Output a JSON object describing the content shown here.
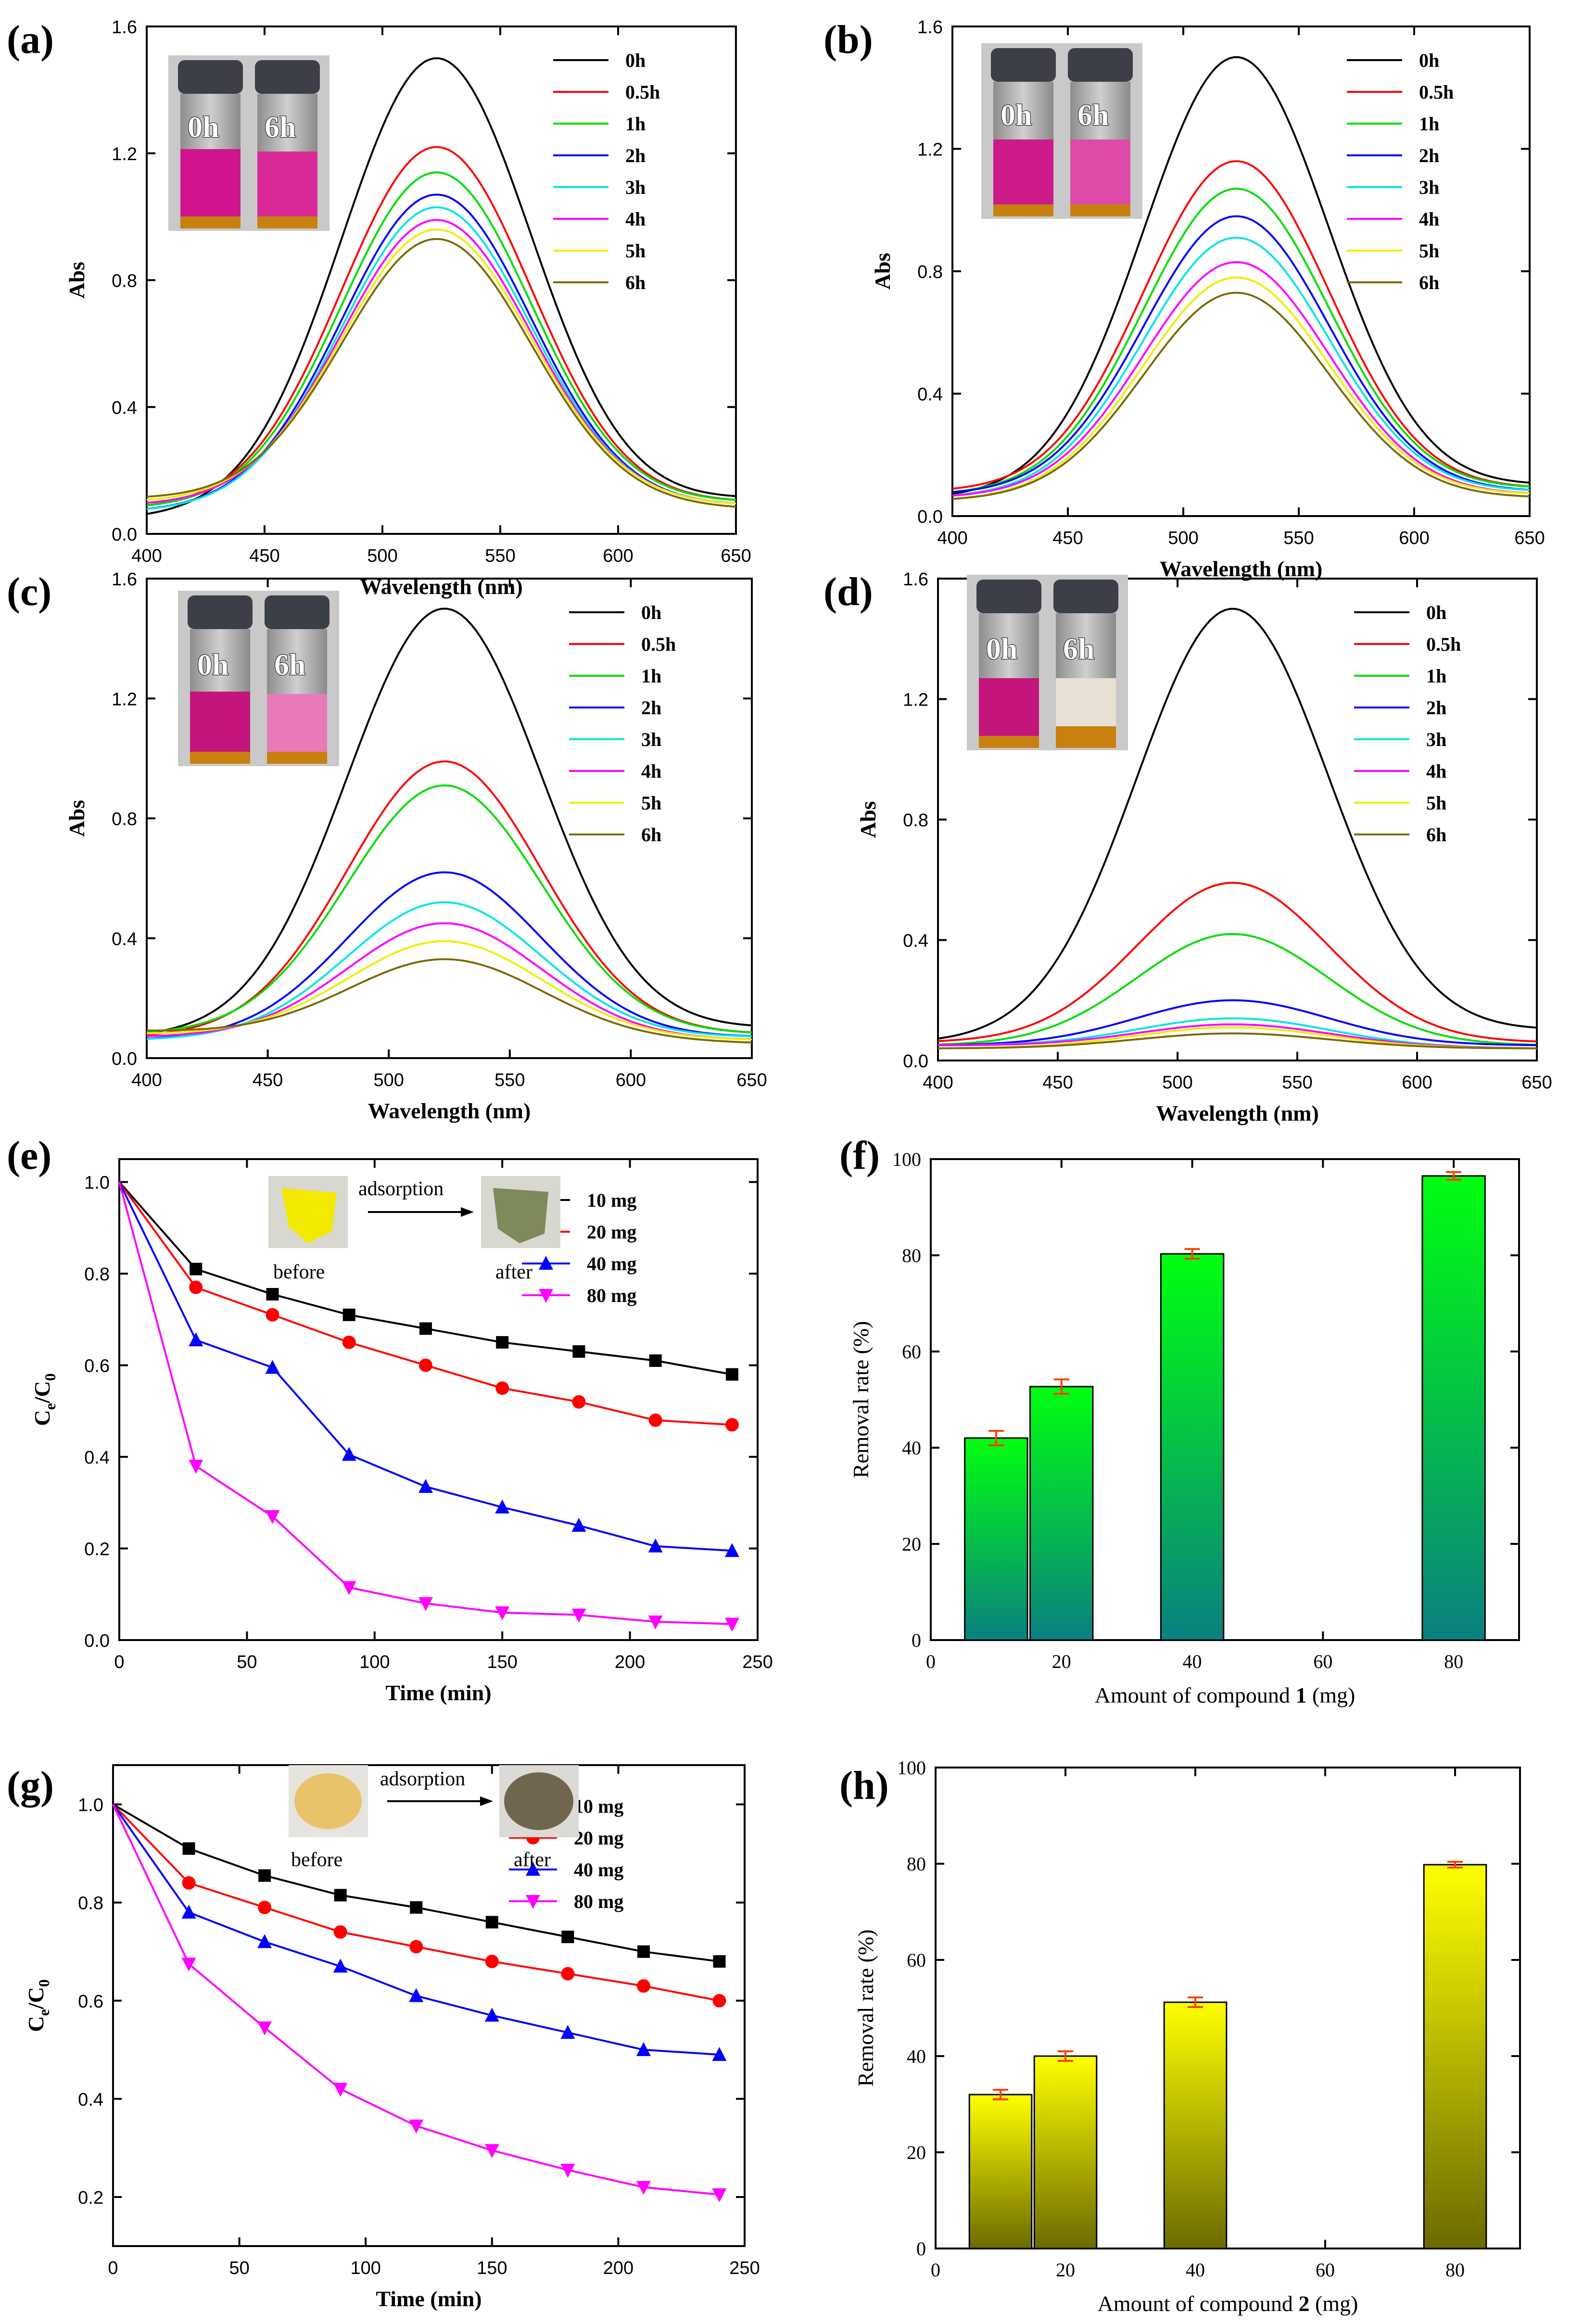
{
  "figure": {
    "panel_labels": [
      "(a)",
      "(b)",
      "(c)",
      "(d)",
      "(e)",
      "(f)",
      "(g)",
      "(h)"
    ],
    "vial_labels": [
      "0h",
      "6h"
    ],
    "inset_arrow_text": "adsorption",
    "inset_before": "before",
    "inset_after": "after",
    "series_colors": {
      "0h": "#000000",
      "0.5h": "#ff0000",
      "1h": "#00dd00",
      "2h": "#0000ff",
      "3h": "#00e5e5",
      "4h": "#ff00ff",
      "5h": "#eeee00",
      "6h": "#7a6a00"
    },
    "bar_colors": {
      "f_top": "#00ff10",
      "f_bottom": "#0a8080",
      "h_top": "#ffff00",
      "h_bottom": "#6b6b00",
      "error": "#ff4000"
    }
  },
  "chart_data": [
    {
      "id": "a",
      "type": "line",
      "xlabel": "Wavelength (nm)",
      "ylabel": "Abs",
      "xlim": [
        400,
        650
      ],
      "ylim": [
        0,
        1.6
      ],
      "xticks": [
        "400",
        "450",
        "500",
        "550",
        "600",
        "650"
      ],
      "yticks": [
        "0.0",
        "0.4",
        "0.8",
        "1.2",
        "1.6"
      ],
      "legend": "top-right",
      "peak_nm": 523,
      "series": [
        {
          "name": "0h",
          "peak": 1.5,
          "base": 0.05,
          "baseR": 0.11
        },
        {
          "name": "0.5h",
          "peak": 1.22,
          "base": 0.08,
          "baseR": 0.1
        },
        {
          "name": "1h",
          "peak": 1.14,
          "base": 0.08,
          "baseR": 0.1
        },
        {
          "name": "2h",
          "peak": 1.07,
          "base": 0.07,
          "baseR": 0.09
        },
        {
          "name": "3h",
          "peak": 1.03,
          "base": 0.07,
          "baseR": 0.09
        },
        {
          "name": "4h",
          "peak": 0.99,
          "base": 0.09,
          "baseR": 0.09
        },
        {
          "name": "5h",
          "peak": 0.96,
          "base": 0.1,
          "baseR": 0.09
        },
        {
          "name": "6h",
          "peak": 0.93,
          "base": 0.11,
          "baseR": 0.08
        }
      ]
    },
    {
      "id": "b",
      "type": "line",
      "xlabel": "Wavelength (nm)",
      "ylabel": "Abs",
      "xlim": [
        400,
        650
      ],
      "ylim": [
        0,
        1.6
      ],
      "xticks": [
        "400",
        "450",
        "500",
        "550",
        "600",
        "650"
      ],
      "yticks": [
        "0.0",
        "0.4",
        "0.8",
        "1.2",
        "1.6"
      ],
      "legend": "top-right",
      "peak_nm": 523,
      "series": [
        {
          "name": "0h",
          "peak": 1.5,
          "base": 0.06,
          "baseR": 0.1
        },
        {
          "name": "0.5h",
          "peak": 1.16,
          "base": 0.08,
          "baseR": 0.09
        },
        {
          "name": "1h",
          "peak": 1.07,
          "base": 0.07,
          "baseR": 0.09
        },
        {
          "name": "2h",
          "peak": 0.98,
          "base": 0.07,
          "baseR": 0.08
        },
        {
          "name": "3h",
          "peak": 0.91,
          "base": 0.06,
          "baseR": 0.08
        },
        {
          "name": "4h",
          "peak": 0.83,
          "base": 0.06,
          "baseR": 0.07
        },
        {
          "name": "5h",
          "peak": 0.78,
          "base": 0.05,
          "baseR": 0.07
        },
        {
          "name": "6h",
          "peak": 0.73,
          "base": 0.05,
          "baseR": 0.06
        }
      ]
    },
    {
      "id": "c",
      "type": "line",
      "xlabel": "Wavelength (nm)",
      "ylabel": "Abs",
      "xlim": [
        400,
        650
      ],
      "ylim": [
        0,
        1.6
      ],
      "xticks": [
        "400",
        "450",
        "500",
        "550",
        "600",
        "650"
      ],
      "yticks": [
        "0.0",
        "0.4",
        "0.8",
        "1.2",
        "1.6"
      ],
      "legend": "top-right",
      "peak_nm": 523,
      "series": [
        {
          "name": "0h",
          "peak": 1.5,
          "base": 0.07,
          "baseR": 0.1
        },
        {
          "name": "0.5h",
          "peak": 0.99,
          "base": 0.07,
          "baseR": 0.08
        },
        {
          "name": "1h",
          "peak": 0.91,
          "base": 0.08,
          "baseR": 0.08
        },
        {
          "name": "2h",
          "peak": 0.62,
          "base": 0.06,
          "baseR": 0.07
        },
        {
          "name": "3h",
          "peak": 0.52,
          "base": 0.06,
          "baseR": 0.07
        },
        {
          "name": "4h",
          "peak": 0.45,
          "base": 0.07,
          "baseR": 0.06
        },
        {
          "name": "5h",
          "peak": 0.39,
          "base": 0.08,
          "baseR": 0.06
        },
        {
          "name": "6h",
          "peak": 0.33,
          "base": 0.09,
          "baseR": 0.05
        }
      ]
    },
    {
      "id": "d",
      "type": "line",
      "xlabel": "Wavelength (nm)",
      "ylabel": "Abs",
      "xlim": [
        400,
        650
      ],
      "ylim": [
        0,
        1.6
      ],
      "xticks": [
        "400",
        "450",
        "500",
        "550",
        "600",
        "650"
      ],
      "yticks": [
        "0.0",
        "0.4",
        "0.8",
        "1.2",
        "1.6"
      ],
      "legend": "top-right",
      "peak_nm": 523,
      "series": [
        {
          "name": "0h",
          "peak": 1.5,
          "base": 0.06,
          "baseR": 0.1
        },
        {
          "name": "0.5h",
          "peak": 0.59,
          "base": 0.06,
          "baseR": 0.06
        },
        {
          "name": "1h",
          "peak": 0.42,
          "base": 0.05,
          "baseR": 0.05
        },
        {
          "name": "2h",
          "peak": 0.2,
          "base": 0.05,
          "baseR": 0.05
        },
        {
          "name": "3h",
          "peak": 0.14,
          "base": 0.05,
          "baseR": 0.04
        },
        {
          "name": "4h",
          "peak": 0.12,
          "base": 0.05,
          "baseR": 0.04
        },
        {
          "name": "5h",
          "peak": 0.11,
          "base": 0.04,
          "baseR": 0.04
        },
        {
          "name": "6h",
          "peak": 0.09,
          "base": 0.04,
          "baseR": 0.04
        }
      ]
    },
    {
      "id": "e",
      "type": "line",
      "xlabel": "Time (min)",
      "ylabel": "Ce/C0",
      "xlim": [
        0,
        250
      ],
      "ylim": [
        0,
        1.05
      ],
      "xticks": [
        "0",
        "50",
        "100",
        "150",
        "200",
        "250"
      ],
      "yticks": [
        "0.0",
        "0.2",
        "0.4",
        "0.6",
        "0.8",
        "1.0"
      ],
      "ytick_values": [
        0,
        0.2,
        0.4,
        0.6,
        0.8,
        1.0
      ],
      "legend": "top-right",
      "x": [
        0,
        30,
        60,
        90,
        120,
        150,
        180,
        210,
        240
      ],
      "series": [
        {
          "name": "10 mg",
          "color": "#000000",
          "marker": "square",
          "values": [
            1.0,
            0.81,
            0.755,
            0.71,
            0.68,
            0.65,
            0.63,
            0.61,
            0.58
          ]
        },
        {
          "name": "20 mg",
          "color": "#ff0000",
          "marker": "circle",
          "values": [
            1.0,
            0.77,
            0.71,
            0.65,
            0.6,
            0.55,
            0.52,
            0.48,
            0.47
          ]
        },
        {
          "name": "40 mg",
          "color": "#0000ff",
          "marker": "triangle",
          "values": [
            1.0,
            0.655,
            0.595,
            0.405,
            0.335,
            0.29,
            0.25,
            0.205,
            0.195
          ]
        },
        {
          "name": "80 mg",
          "color": "#ff00ff",
          "marker": "triangle-down",
          "values": [
            1.0,
            0.38,
            0.27,
            0.115,
            0.08,
            0.06,
            0.055,
            0.04,
            0.035
          ]
        }
      ]
    },
    {
      "id": "f",
      "type": "bar",
      "xlabel_prefix": "Amount of compound ",
      "xlabel_bold": "1",
      "xlabel_suffix": " (mg)",
      "ylabel": "Removal rate (%)",
      "xlim": [
        0,
        90
      ],
      "ylim": [
        0,
        100
      ],
      "xticks": [
        "0",
        "20",
        "40",
        "60",
        "80"
      ],
      "yticks": [
        "0",
        "20",
        "40",
        "60",
        "80",
        "100"
      ],
      "categories": [
        10,
        20,
        40,
        80
      ],
      "values": [
        42.0,
        52.7,
        80.3,
        96.5
      ],
      "errors": [
        1.5,
        1.5,
        1.0,
        0.8
      ]
    },
    {
      "id": "g",
      "type": "line",
      "xlabel": "Time (min)",
      "ylabel": "Ce/C0",
      "xlim": [
        0,
        250
      ],
      "ylim": [
        0.1,
        1.08
      ],
      "xticks": [
        "0",
        "50",
        "100",
        "150",
        "200",
        "250"
      ],
      "yticks": [
        "0.2",
        "0.4",
        "0.6",
        "0.8",
        "1.0"
      ],
      "ytick_values": [
        0.2,
        0.4,
        0.6,
        0.8,
        1.0
      ],
      "legend": "top-right",
      "x": [
        0,
        30,
        60,
        90,
        120,
        150,
        180,
        210,
        240
      ],
      "series": [
        {
          "name": "10 mg",
          "color": "#000000",
          "marker": "square",
          "values": [
            1.0,
            0.91,
            0.855,
            0.815,
            0.79,
            0.76,
            0.73,
            0.7,
            0.68
          ]
        },
        {
          "name": "20 mg",
          "color": "#ff0000",
          "marker": "circle",
          "values": [
            1.0,
            0.84,
            0.79,
            0.74,
            0.71,
            0.68,
            0.655,
            0.63,
            0.6
          ]
        },
        {
          "name": "40 mg",
          "color": "#0000ff",
          "marker": "triangle",
          "values": [
            1.0,
            0.78,
            0.72,
            0.67,
            0.61,
            0.57,
            0.535,
            0.5,
            0.49
          ]
        },
        {
          "name": "80 mg",
          "color": "#ff00ff",
          "marker": "triangle-down",
          "values": [
            1.0,
            0.675,
            0.545,
            0.42,
            0.345,
            0.295,
            0.255,
            0.22,
            0.205
          ]
        }
      ]
    },
    {
      "id": "h",
      "type": "bar",
      "xlabel_prefix": "Amount of compound ",
      "xlabel_bold": "2",
      "xlabel_suffix": " (mg)",
      "ylabel": "Removal rate (%)",
      "xlim": [
        0,
        90
      ],
      "ylim": [
        0,
        100
      ],
      "xticks": [
        "0",
        "20",
        "40",
        "60",
        "80"
      ],
      "yticks": [
        "0",
        "20",
        "40",
        "60",
        "80",
        "100"
      ],
      "categories": [
        10,
        20,
        40,
        80
      ],
      "values": [
        32.0,
        40.0,
        51.2,
        79.8
      ],
      "errors": [
        1.0,
        1.0,
        1.0,
        0.6
      ]
    }
  ]
}
